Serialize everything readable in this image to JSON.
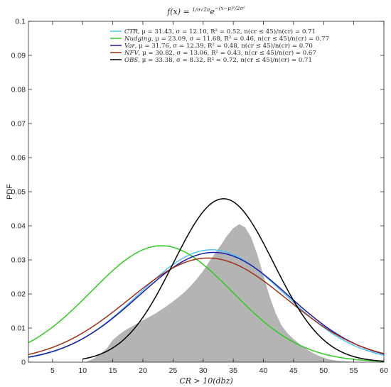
{
  "chart_data": {
    "type": "line",
    "title": "f(x) = 1/(σ√2π) e^(−(x−μ)²/2σ²)",
    "title_parts": {
      "lhs": "f(x) = ",
      "num": "1",
      "den": "σ√2π",
      "base": "e",
      "exp": "−(x−μ)²/2σ²"
    },
    "xlabel": "CR > 10(dbz)",
    "ylabel": "PDF",
    "xlim": [
      1,
      60
    ],
    "ylim": [
      0,
      0.1
    ],
    "xticks": [
      5,
      10,
      15,
      20,
      25,
      30,
      35,
      40,
      45,
      50,
      55,
      60
    ],
    "yticks": [
      0,
      0.01,
      0.02,
      0.03,
      0.04,
      0.05,
      0.06,
      0.07,
      0.08,
      0.09,
      0.1
    ],
    "ytick_labels": [
      "0",
      "0.01",
      "0.02",
      "0.03",
      "0.04",
      "0.05",
      "0.06",
      "0.07",
      "0.08",
      "0.09",
      "0.1"
    ],
    "grid": false,
    "legend_position": "top-center",
    "histogram": {
      "color": "#b4b4b4",
      "x": [
        10.5,
        12,
        13,
        14,
        15,
        16,
        17,
        18,
        19,
        20,
        21,
        22,
        23,
        24,
        25,
        26,
        27,
        28,
        29,
        30,
        31,
        32,
        33,
        34,
        35,
        36,
        37,
        38,
        39,
        40,
        41,
        42,
        43,
        44,
        45,
        46,
        47,
        48,
        49,
        50,
        51,
        52,
        53,
        54,
        55,
        56,
        57,
        58,
        59,
        60
      ],
      "y": [
        0.0,
        0.0012,
        0.0025,
        0.004,
        0.0065,
        0.008,
        0.0093,
        0.0103,
        0.0113,
        0.0123,
        0.0132,
        0.0142,
        0.0153,
        0.0165,
        0.0178,
        0.0192,
        0.0207,
        0.0225,
        0.0245,
        0.0268,
        0.0295,
        0.032,
        0.0345,
        0.0372,
        0.0393,
        0.0405,
        0.0395,
        0.0365,
        0.0315,
        0.0255,
        0.0195,
        0.0145,
        0.0108,
        0.0085,
        0.0068,
        0.0053,
        0.004,
        0.0029,
        0.002,
        0.0013,
        0.0008,
        0.0005,
        0.0003,
        0.0002,
        0.0001,
        0.0,
        0.0,
        0.0,
        0.0,
        0.0
      ]
    },
    "series": [
      {
        "name": "CTR",
        "mu": 31.43,
        "sigma": 12.1,
        "r2": "0.52",
        "ratio": "0.71",
        "mu_text": "31.43",
        "sigma_text": "12.10",
        "color": "#4fc3f7",
        "xrange": [
          1,
          60
        ]
      },
      {
        "name": "Nudging",
        "mu": 23.09,
        "sigma": 11.68,
        "r2": "0.46",
        "ratio": "0.77",
        "mu_text": "23.09",
        "sigma_text": "11.68",
        "color": "#2ecc1f",
        "xrange": [
          1,
          60
        ]
      },
      {
        "name": "Var",
        "mu": 31.76,
        "sigma": 12.39,
        "r2": "0.48",
        "ratio": "0.70",
        "mu_text": "31.76",
        "sigma_text": "12.39",
        "color": "#1a1aa8",
        "xrange": [
          1,
          60
        ]
      },
      {
        "name": "NFV",
        "mu": 30.82,
        "sigma": 13.06,
        "r2": "0.43",
        "ratio": "0.67",
        "mu_text": "30.82",
        "sigma_text": "13.06",
        "color": "#a0301a",
        "xrange": [
          1,
          60
        ]
      },
      {
        "name": "OBS",
        "mu": 33.38,
        "sigma": 8.32,
        "r2": "0.72",
        "ratio": "0.71",
        "mu_text": "33.38",
        "sigma_text": "8.32",
        "color": "#000000",
        "xrange": [
          10,
          60
        ]
      }
    ],
    "legend_template": {
      "mu_part": ", μ = ",
      "sigma_part": ", σ = ",
      "r2_part": ", R² = ",
      "ratio_part": ", n(cr ≤ 45)/n(cr) = "
    }
  }
}
